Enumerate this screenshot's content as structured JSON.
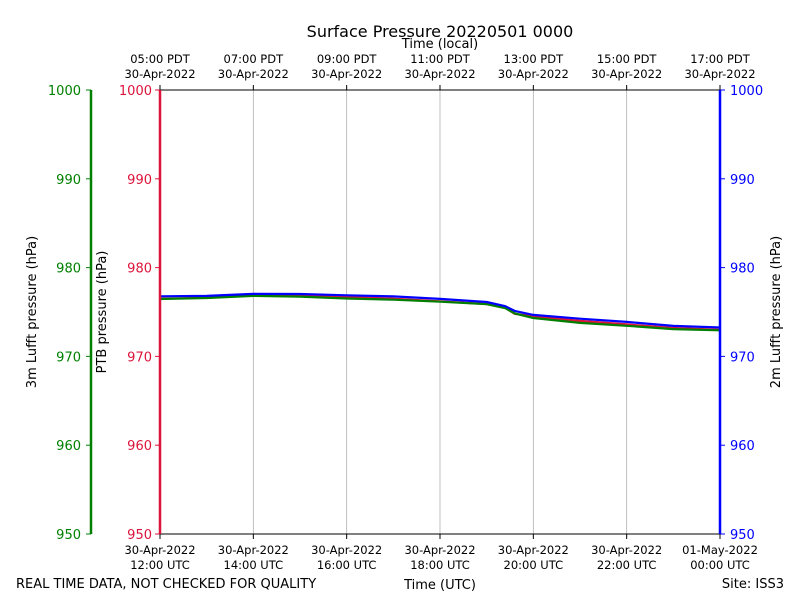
{
  "chart_data": {
    "type": "line",
    "title": "Surface Pressure 20220501 0000",
    "top_axis_label": "Time (local)",
    "xlabel": "Time (UTC)",
    "y_axes": [
      {
        "id": "left_outer",
        "label": "3m Lufft pressure (hPa)",
        "color": "#008000",
        "ylim": [
          950,
          1000
        ]
      },
      {
        "id": "left_inner",
        "label": "PTB pressure (hPa)",
        "color": "#dc143c",
        "ylim": [
          950,
          1000
        ]
      },
      {
        "id": "right",
        "label": "2m Lufft pressure (hPa)",
        "color": "#0000ff",
        "ylim": [
          950,
          1000
        ]
      }
    ],
    "y_ticks": [
      950,
      960,
      970,
      980,
      990,
      1000
    ],
    "x_range_hours": [
      12.0,
      24.0
    ],
    "bottom_ticks": [
      {
        "x": 12,
        "line1": "30-Apr-2022",
        "line2": "12:00 UTC"
      },
      {
        "x": 14,
        "line1": "30-Apr-2022",
        "line2": "14:00 UTC"
      },
      {
        "x": 16,
        "line1": "30-Apr-2022",
        "line2": "16:00 UTC"
      },
      {
        "x": 18,
        "line1": "30-Apr-2022",
        "line2": "18:00 UTC"
      },
      {
        "x": 20,
        "line1": "30-Apr-2022",
        "line2": "20:00 UTC"
      },
      {
        "x": 22,
        "line1": "30-Apr-2022",
        "line2": "22:00 UTC"
      },
      {
        "x": 24,
        "line1": "01-May-2022",
        "line2": "00:00 UTC"
      }
    ],
    "top_ticks": [
      {
        "x": 12,
        "line1": "05:00 PDT",
        "line2": "30-Apr-2022"
      },
      {
        "x": 14,
        "line1": "07:00 PDT",
        "line2": "30-Apr-2022"
      },
      {
        "x": 16,
        "line1": "09:00 PDT",
        "line2": "30-Apr-2022"
      },
      {
        "x": 18,
        "line1": "11:00 PDT",
        "line2": "30-Apr-2022"
      },
      {
        "x": 20,
        "line1": "13:00 PDT",
        "line2": "30-Apr-2022"
      },
      {
        "x": 22,
        "line1": "15:00 PDT",
        "line2": "30-Apr-2022"
      },
      {
        "x": 24,
        "line1": "17:00 PDT",
        "line2": "30-Apr-2022"
      }
    ],
    "series": [
      {
        "name": "PTB pressure",
        "color": "#dc143c",
        "x": [
          12.0,
          13.0,
          14.0,
          15.0,
          16.0,
          17.0,
          18.0,
          19.0,
          19.4,
          19.6,
          20.0,
          21.0,
          22.0,
          23.0,
          24.0
        ],
        "y": [
          976.5,
          976.6,
          976.9,
          976.9,
          976.7,
          976.5,
          976.2,
          975.9,
          975.5,
          974.8,
          974.5,
          974.0,
          973.6,
          973.2,
          973.0
        ]
      },
      {
        "name": "3m Lufft pressure",
        "color": "#008000",
        "x": [
          12.0,
          13.0,
          14.0,
          15.0,
          16.0,
          17.0,
          18.0,
          19.0,
          19.4,
          19.6,
          20.0,
          21.0,
          22.0,
          23.0,
          24.0
        ],
        "y": [
          976.4,
          976.5,
          976.8,
          976.8,
          976.6,
          976.4,
          976.1,
          975.8,
          975.4,
          974.9,
          974.4,
          973.8,
          973.4,
          973.0,
          972.9
        ]
      },
      {
        "name": "2m Lufft pressure",
        "color": "#0000ff",
        "x": [
          12.0,
          13.0,
          14.0,
          15.0,
          16.0,
          17.0,
          18.0,
          19.0,
          19.4,
          19.6,
          20.0,
          21.0,
          22.0,
          23.0,
          24.0
        ],
        "y": [
          976.7,
          976.8,
          977.1,
          977.1,
          976.9,
          976.7,
          976.4,
          976.1,
          975.7,
          975.2,
          974.7,
          974.2,
          973.8,
          973.4,
          973.3
        ]
      }
    ],
    "grid": "vertical",
    "footer_left": "REAL TIME DATA, NOT CHECKED FOR QUALITY",
    "footer_right": "Site: ISS3"
  }
}
